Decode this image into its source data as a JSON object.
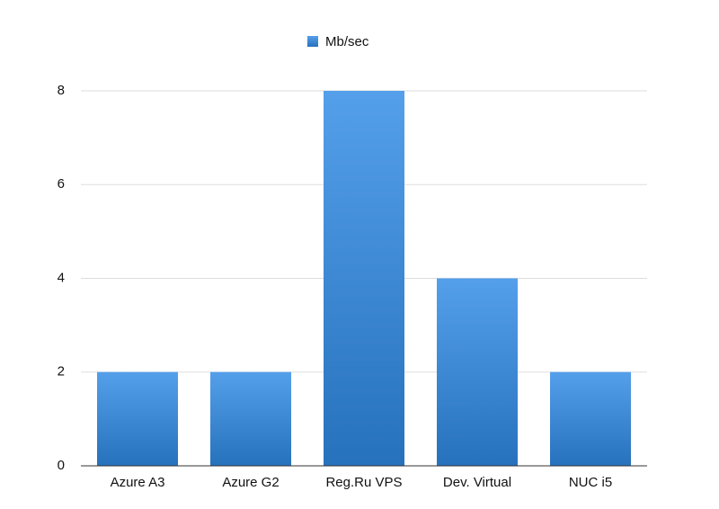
{
  "chart_data": {
    "type": "bar",
    "categories": [
      "Azure A3",
      "Azure G2",
      "Reg.Ru VPS",
      "Dev. Virtual",
      "NUC i5"
    ],
    "series": [
      {
        "name": "Mb/sec",
        "color": "#2f8ae6",
        "values": [
          2,
          2,
          8,
          4,
          2
        ]
      }
    ],
    "ylim": [
      0,
      8
    ],
    "yticks": [
      0,
      2,
      4,
      6,
      8
    ],
    "grid": true,
    "legend": "top"
  }
}
